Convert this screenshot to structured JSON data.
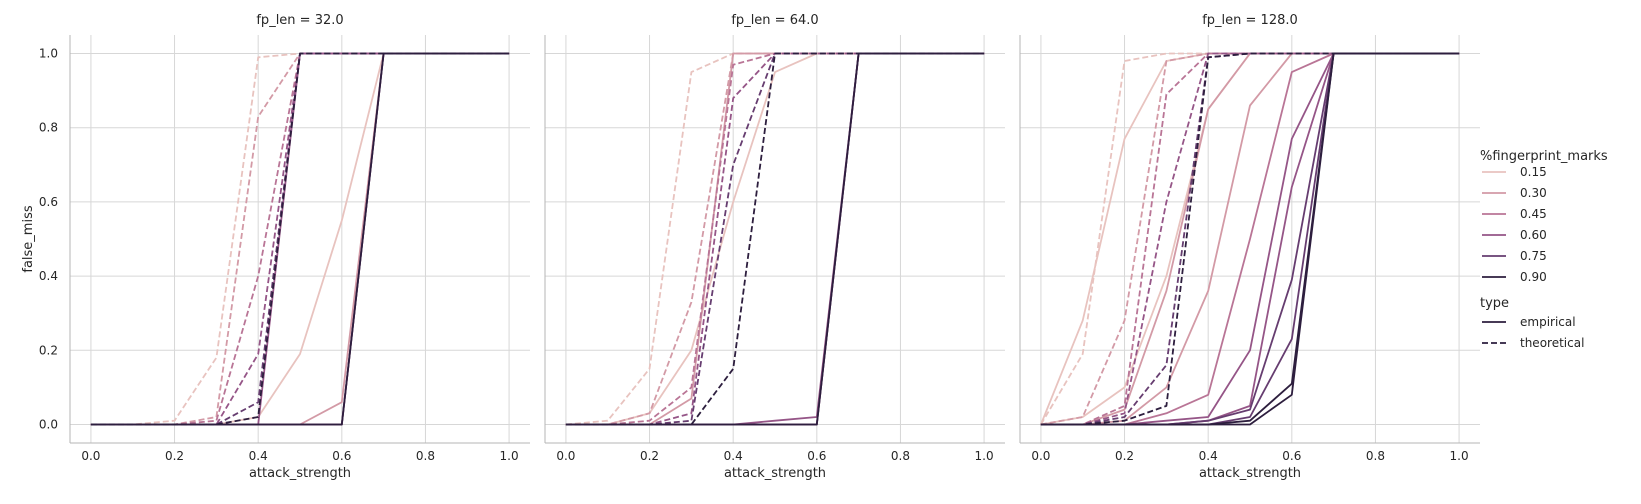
{
  "colors": {
    "palette": [
      "#e8c3bf",
      "#d39aa6",
      "#b97596",
      "#955587",
      "#663d70",
      "#2d1e3e"
    ],
    "grid": "#d7d7d7",
    "axis": "#b5b5b5",
    "text": "#262626"
  },
  "legend": {
    "hue_title": "%fingerprint_marks",
    "hue_entries": [
      "0.15",
      "0.30",
      "0.45",
      "0.60",
      "0.75",
      "0.90"
    ],
    "style_title": "type",
    "style_entries": [
      "empirical",
      "theoretical"
    ]
  },
  "chart_data": [
    {
      "type": "line",
      "title": "fp_len = 32.0",
      "xlabel": "attack_strength",
      "ylabel": "false_miss",
      "xlim": [
        -0.05,
        1.05
      ],
      "ylim": [
        -0.05,
        1.05
      ],
      "xticks": [
        "0.0",
        "0.2",
        "0.4",
        "0.6",
        "0.8",
        "1.0"
      ],
      "yticks": [
        "0.0",
        "0.2",
        "0.4",
        "0.6",
        "0.8",
        "1.0"
      ],
      "grid": true,
      "x": [
        0.0,
        0.1,
        0.2,
        0.3,
        0.4,
        0.5,
        0.6,
        0.7,
        0.8,
        0.9,
        1.0
      ],
      "series": [
        {
          "hue": "0.15",
          "type": "empirical",
          "values": [
            0,
            0,
            0,
            0,
            0.02,
            0.19,
            0.55,
            1.0,
            1.0,
            1.0,
            1.0
          ]
        },
        {
          "hue": "0.30",
          "type": "empirical",
          "values": [
            0,
            0,
            0,
            0,
            0,
            0,
            0.06,
            1.0,
            1.0,
            1.0,
            1.0
          ]
        },
        {
          "hue": "0.45",
          "type": "empirical",
          "values": [
            0,
            0,
            0,
            0,
            0,
            0,
            0,
            1.0,
            1.0,
            1.0,
            1.0
          ]
        },
        {
          "hue": "0.60",
          "type": "empirical",
          "values": [
            0,
            0,
            0,
            0,
            0,
            1.0,
            1.0,
            1.0,
            1.0,
            1.0,
            1.0
          ]
        },
        {
          "hue": "0.75",
          "type": "empirical",
          "values": [
            0,
            0,
            0,
            0,
            0,
            0,
            0,
            1.0,
            1.0,
            1.0,
            1.0
          ]
        },
        {
          "hue": "0.90",
          "type": "empirical",
          "values": [
            0,
            0,
            0,
            0,
            0,
            0,
            0,
            1.0,
            1.0,
            1.0,
            1.0
          ]
        },
        {
          "hue": "0.15",
          "type": "theoretical",
          "values": [
            0,
            0,
            0.01,
            0.18,
            0.99,
            1.0,
            1.0,
            1.0,
            1.0,
            1.0,
            1.0
          ]
        },
        {
          "hue": "0.30",
          "type": "theoretical",
          "values": [
            0,
            0,
            0,
            0.02,
            0.83,
            1.0,
            1.0,
            1.0,
            1.0,
            1.0,
            1.0
          ]
        },
        {
          "hue": "0.45",
          "type": "theoretical",
          "values": [
            0,
            0,
            0,
            0.01,
            0.4,
            1.0,
            1.0,
            1.0,
            1.0,
            1.0,
            1.0
          ]
        },
        {
          "hue": "0.60",
          "type": "theoretical",
          "values": [
            0,
            0,
            0,
            0,
            0.19,
            1.0,
            1.0,
            1.0,
            1.0,
            1.0,
            1.0
          ]
        },
        {
          "hue": "0.75",
          "type": "theoretical",
          "values": [
            0,
            0,
            0,
            0,
            0.06,
            1.0,
            1.0,
            1.0,
            1.0,
            1.0,
            1.0
          ]
        },
        {
          "hue": "0.90",
          "type": "theoretical",
          "values": [
            0,
            0,
            0,
            0,
            0.02,
            1.0,
            1.0,
            1.0,
            1.0,
            1.0,
            1.0
          ]
        }
      ]
    },
    {
      "type": "line",
      "title": "fp_len = 64.0",
      "xlabel": "attack_strength",
      "ylabel": "",
      "xlim": [
        -0.05,
        1.05
      ],
      "ylim": [
        -0.05,
        1.05
      ],
      "xticks": [
        "0.0",
        "0.2",
        "0.4",
        "0.6",
        "0.8",
        "1.0"
      ],
      "yticks": [
        "0.0",
        "0.2",
        "0.4",
        "0.6",
        "0.8",
        "1.0"
      ],
      "grid": true,
      "x": [
        0.0,
        0.1,
        0.2,
        0.3,
        0.4,
        0.5,
        0.6,
        0.7,
        0.8,
        0.9,
        1.0
      ],
      "series": [
        {
          "hue": "0.15",
          "type": "empirical",
          "values": [
            0,
            0,
            0.03,
            0.2,
            0.6,
            0.95,
            1.0,
            1.0,
            1.0,
            1.0,
            1.0
          ]
        },
        {
          "hue": "0.30",
          "type": "empirical",
          "values": [
            0,
            0,
            0,
            0.07,
            1.0,
            1.0,
            1.0,
            1.0,
            1.0,
            1.0,
            1.0
          ]
        },
        {
          "hue": "0.45",
          "type": "empirical",
          "values": [
            0,
            0,
            0,
            0,
            0,
            0,
            0,
            1.0,
            1.0,
            1.0,
            1.0
          ]
        },
        {
          "hue": "0.60",
          "type": "empirical",
          "values": [
            0,
            0,
            0,
            0,
            0,
            0.01,
            0.02,
            1.0,
            1.0,
            1.0,
            1.0
          ]
        },
        {
          "hue": "0.75",
          "type": "empirical",
          "values": [
            0,
            0,
            0,
            0,
            0,
            0,
            0,
            1.0,
            1.0,
            1.0,
            1.0
          ]
        },
        {
          "hue": "0.90",
          "type": "empirical",
          "values": [
            0,
            0,
            0,
            0,
            0,
            0,
            0,
            1.0,
            1.0,
            1.0,
            1.0
          ]
        },
        {
          "hue": "0.15",
          "type": "theoretical",
          "values": [
            0,
            0.01,
            0.15,
            0.95,
            1.0,
            1.0,
            1.0,
            1.0,
            1.0,
            1.0,
            1.0
          ]
        },
        {
          "hue": "0.30",
          "type": "theoretical",
          "values": [
            0,
            0,
            0.03,
            0.33,
            1.0,
            1.0,
            1.0,
            1.0,
            1.0,
            1.0,
            1.0
          ]
        },
        {
          "hue": "0.45",
          "type": "theoretical",
          "values": [
            0,
            0,
            0.01,
            0.1,
            0.97,
            1.0,
            1.0,
            1.0,
            1.0,
            1.0,
            1.0
          ]
        },
        {
          "hue": "0.60",
          "type": "theoretical",
          "values": [
            0,
            0,
            0,
            0.03,
            0.88,
            1.0,
            1.0,
            1.0,
            1.0,
            1.0,
            1.0
          ]
        },
        {
          "hue": "0.75",
          "type": "theoretical",
          "values": [
            0,
            0,
            0,
            0.01,
            0.7,
            1.0,
            1.0,
            1.0,
            1.0,
            1.0,
            1.0
          ]
        },
        {
          "hue": "0.90",
          "type": "theoretical",
          "values": [
            0,
            0,
            0,
            0,
            0.15,
            1.0,
            1.0,
            1.0,
            1.0,
            1.0,
            1.0
          ]
        }
      ]
    },
    {
      "type": "line",
      "title": "fp_len = 128.0",
      "xlabel": "attack_strength",
      "ylabel": "",
      "xlim": [
        -0.05,
        1.05
      ],
      "ylim": [
        -0.05,
        1.05
      ],
      "xticks": [
        "0.0",
        "0.2",
        "0.4",
        "0.6",
        "0.8",
        "1.0"
      ],
      "yticks": [
        "0.0",
        "0.2",
        "0.4",
        "0.6",
        "0.8",
        "1.0"
      ],
      "grid": true,
      "x": [
        0.0,
        0.1,
        0.2,
        0.3,
        0.4,
        0.5,
        0.6,
        0.7,
        0.8,
        0.9,
        1.0
      ],
      "series": [
        {
          "hue": "0.15",
          "type": "empirical",
          "values": [
            0,
            0.28,
            0.77,
            0.98,
            1.0,
            1.0,
            1.0,
            1.0,
            1.0,
            1.0,
            1.0
          ]
        },
        {
          "hue": "0.15",
          "type": "empirical",
          "values": [
            0,
            0.02,
            0.1,
            0.4,
            0.85,
            1.0,
            1.0,
            1.0,
            1.0,
            1.0,
            1.0
          ]
        },
        {
          "hue": "0.30",
          "type": "empirical",
          "values": [
            0,
            0,
            0.04,
            0.36,
            0.85,
            1.0,
            1.0,
            1.0,
            1.0,
            1.0,
            1.0
          ]
        },
        {
          "hue": "0.30",
          "type": "empirical",
          "values": [
            0,
            0,
            0.01,
            0.1,
            0.36,
            0.86,
            1.0,
            1.0,
            1.0,
            1.0,
            1.0
          ]
        },
        {
          "hue": "0.45",
          "type": "empirical",
          "values": [
            0,
            0,
            0,
            0.03,
            0.08,
            0.5,
            0.95,
            1.0,
            1.0,
            1.0,
            1.0
          ]
        },
        {
          "hue": "0.60",
          "type": "empirical",
          "values": [
            0,
            0,
            0,
            0.01,
            0.02,
            0.2,
            0.77,
            1.0,
            1.0,
            1.0,
            1.0
          ]
        },
        {
          "hue": "0.60",
          "type": "empirical",
          "values": [
            0,
            0,
            0,
            0,
            0.01,
            0.05,
            0.64,
            1.0,
            1.0,
            1.0,
            1.0
          ]
        },
        {
          "hue": "0.75",
          "type": "empirical",
          "values": [
            0,
            0,
            0,
            0,
            0.01,
            0.04,
            0.39,
            1.0,
            1.0,
            1.0,
            1.0
          ]
        },
        {
          "hue": "0.75",
          "type": "empirical",
          "values": [
            0,
            0,
            0,
            0,
            0,
            0.02,
            0.23,
            1.0,
            1.0,
            1.0,
            1.0
          ]
        },
        {
          "hue": "0.90",
          "type": "empirical",
          "values": [
            0,
            0,
            0,
            0,
            0,
            0.01,
            0.11,
            1.0,
            1.0,
            1.0,
            1.0
          ]
        },
        {
          "hue": "0.90",
          "type": "empirical",
          "values": [
            0,
            0,
            0,
            0,
            0,
            0,
            0.08,
            1.0,
            1.0,
            1.0,
            1.0
          ]
        },
        {
          "hue": "0.15",
          "type": "theoretical",
          "values": [
            0,
            0.19,
            0.98,
            1.0,
            1.0,
            1.0,
            1.0,
            1.0,
            1.0,
            1.0,
            1.0
          ]
        },
        {
          "hue": "0.30",
          "type": "theoretical",
          "values": [
            0,
            0.02,
            0.28,
            0.98,
            1.0,
            1.0,
            1.0,
            1.0,
            1.0,
            1.0,
            1.0
          ]
        },
        {
          "hue": "0.45",
          "type": "theoretical",
          "values": [
            0,
            0,
            0.05,
            0.89,
            1.0,
            1.0,
            1.0,
            1.0,
            1.0,
            1.0,
            1.0
          ]
        },
        {
          "hue": "0.60",
          "type": "theoretical",
          "values": [
            0,
            0,
            0.03,
            0.6,
            1.0,
            1.0,
            1.0,
            1.0,
            1.0,
            1.0,
            1.0
          ]
        },
        {
          "hue": "0.75",
          "type": "theoretical",
          "values": [
            0,
            0,
            0.02,
            0.16,
            0.99,
            1.0,
            1.0,
            1.0,
            1.0,
            1.0,
            1.0
          ]
        },
        {
          "hue": "0.90",
          "type": "theoretical",
          "values": [
            0,
            0,
            0.01,
            0.05,
            0.99,
            1.0,
            1.0,
            1.0,
            1.0,
            1.0,
            1.0
          ]
        }
      ]
    }
  ]
}
